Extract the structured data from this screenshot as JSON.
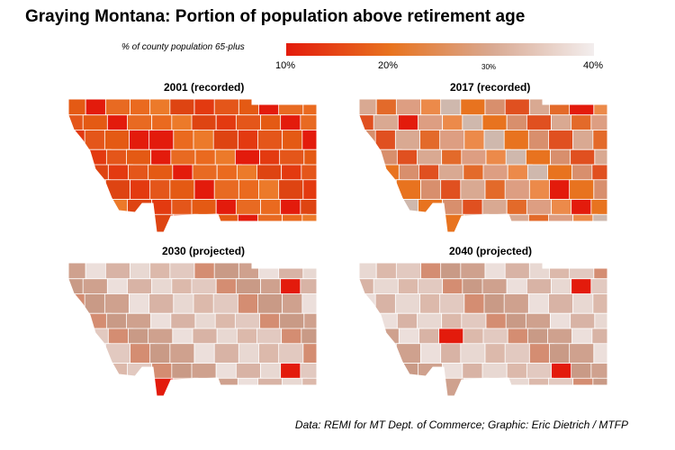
{
  "title": "Graying Montana: Portion of population above retirement age",
  "legend": {
    "label": "% of county population 65-plus",
    "ticks": [
      "10%",
      "20%",
      "30%",
      "40%"
    ],
    "colors": [
      "#e31b0c",
      "#e8731f",
      "#d9a992",
      "#f3eeee"
    ]
  },
  "maps": [
    {
      "title": "2001 (recorded)",
      "shade": "dark"
    },
    {
      "title": "2017 (recorded)",
      "shade": "medium"
    },
    {
      "title": "2030 (projected)",
      "shade": "light"
    },
    {
      "title": "2040 (projected)",
      "shade": "light"
    }
  ],
  "credit": "Data: REMI for MT Dept. of Commerce; Graphic: Eric Dietrich / MTFP"
}
